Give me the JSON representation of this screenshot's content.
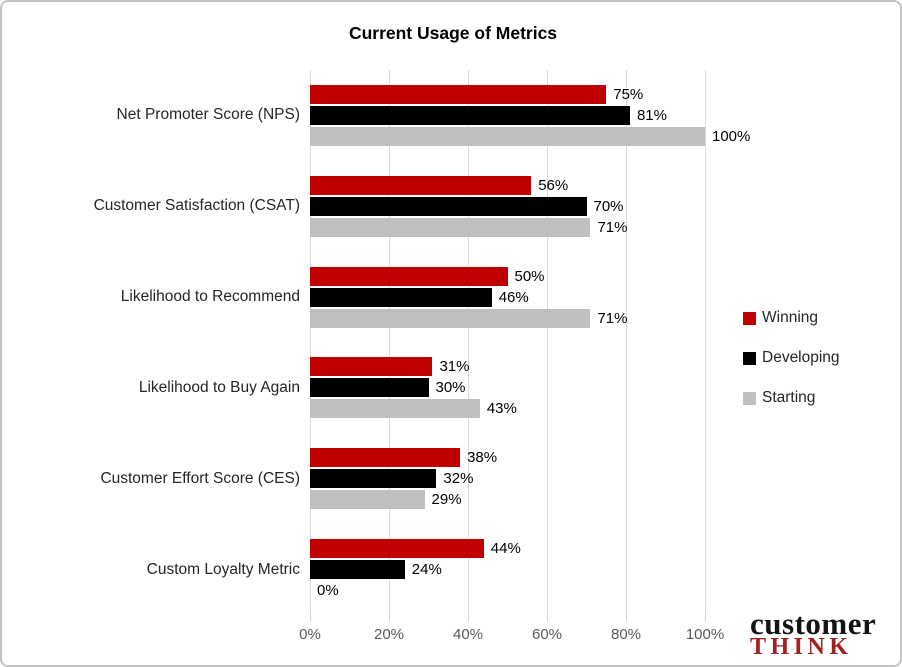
{
  "chart_data": {
    "type": "bar",
    "orientation": "horizontal",
    "title": "Current Usage of Metrics",
    "categories": [
      "Net Promoter Score (NPS)",
      "Customer Satisfaction (CSAT)",
      "Likelihood to Recommend",
      "Likelihood to Buy Again",
      "Customer Effort Score (CES)",
      "Custom Loyalty Metric"
    ],
    "series": [
      {
        "name": "Winning",
        "color": "#C00000",
        "values": [
          75,
          56,
          50,
          31,
          38,
          44
        ]
      },
      {
        "name": "Developing",
        "color": "#000000",
        "values": [
          81,
          70,
          46,
          30,
          32,
          24
        ]
      },
      {
        "name": "Starting",
        "color": "#BFBFBF",
        "values": [
          100,
          71,
          71,
          43,
          29,
          0
        ]
      }
    ],
    "value_suffix": "%",
    "x_ticks": [
      "0%",
      "20%",
      "40%",
      "60%",
      "80%",
      "100%"
    ],
    "xlim": [
      0,
      100
    ],
    "grid": "vertical",
    "legend_position": "right",
    "gridline_color": "#D9D9D9",
    "tick_label_color": "#595959"
  },
  "logo": {
    "line1": "customer",
    "line2": "THINK",
    "line1_color": "#141414",
    "line2_color": "#A32020"
  }
}
